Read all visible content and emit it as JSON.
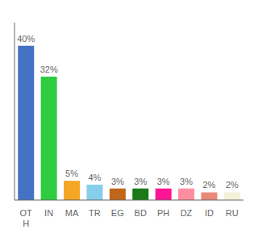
{
  "chart_data": {
    "type": "bar",
    "categories": [
      "OT\nH",
      "IN",
      "MA",
      "TR",
      "EG",
      "BD",
      "PH",
      "DZ",
      "ID",
      "RU"
    ],
    "values": [
      40,
      32,
      5,
      4,
      3,
      3,
      3,
      3,
      2,
      2
    ],
    "value_labels": [
      "40%",
      "32%",
      "5%",
      "4%",
      "3%",
      "3%",
      "3%",
      "3%",
      "2%",
      "2%"
    ],
    "colors": [
      "#4472c4",
      "#2ecc40",
      "#f5a623",
      "#87ceeb",
      "#c0651a",
      "#1a7a1a",
      "#ff1493",
      "#ff8fa0",
      "#e8897a",
      "#f5f0d8"
    ],
    "ylim": [
      0,
      46
    ],
    "data_labels": true,
    "tick_labels": "x",
    "grid": false
  }
}
